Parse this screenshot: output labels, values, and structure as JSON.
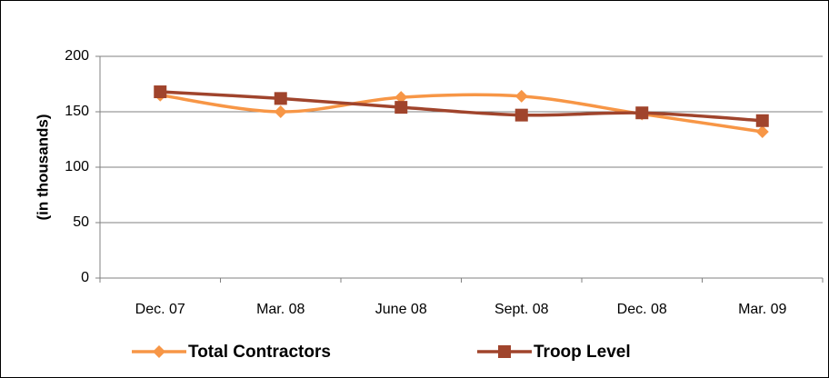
{
  "chart_data": {
    "type": "line",
    "y_label": "(in thousands)",
    "categories": [
      "Dec.  07",
      "Mar. 08",
      "June  08",
      "Sept. 08",
      "Dec.  08",
      "Mar. 09"
    ],
    "series": [
      {
        "name": "Total Contractors",
        "color": "#f79646",
        "marker": "diamond",
        "values": [
          165,
          150,
          163,
          164,
          148,
          132
        ]
      },
      {
        "name": "Troop Level",
        "color": "#a0442c",
        "marker": "square",
        "values": [
          168,
          162,
          154,
          147,
          149,
          142
        ]
      }
    ],
    "ylim": [
      0,
      200
    ],
    "yticks": [
      0,
      50,
      100,
      150,
      200
    ],
    "grid": true,
    "smooth": true,
    "legend": "bottom"
  }
}
